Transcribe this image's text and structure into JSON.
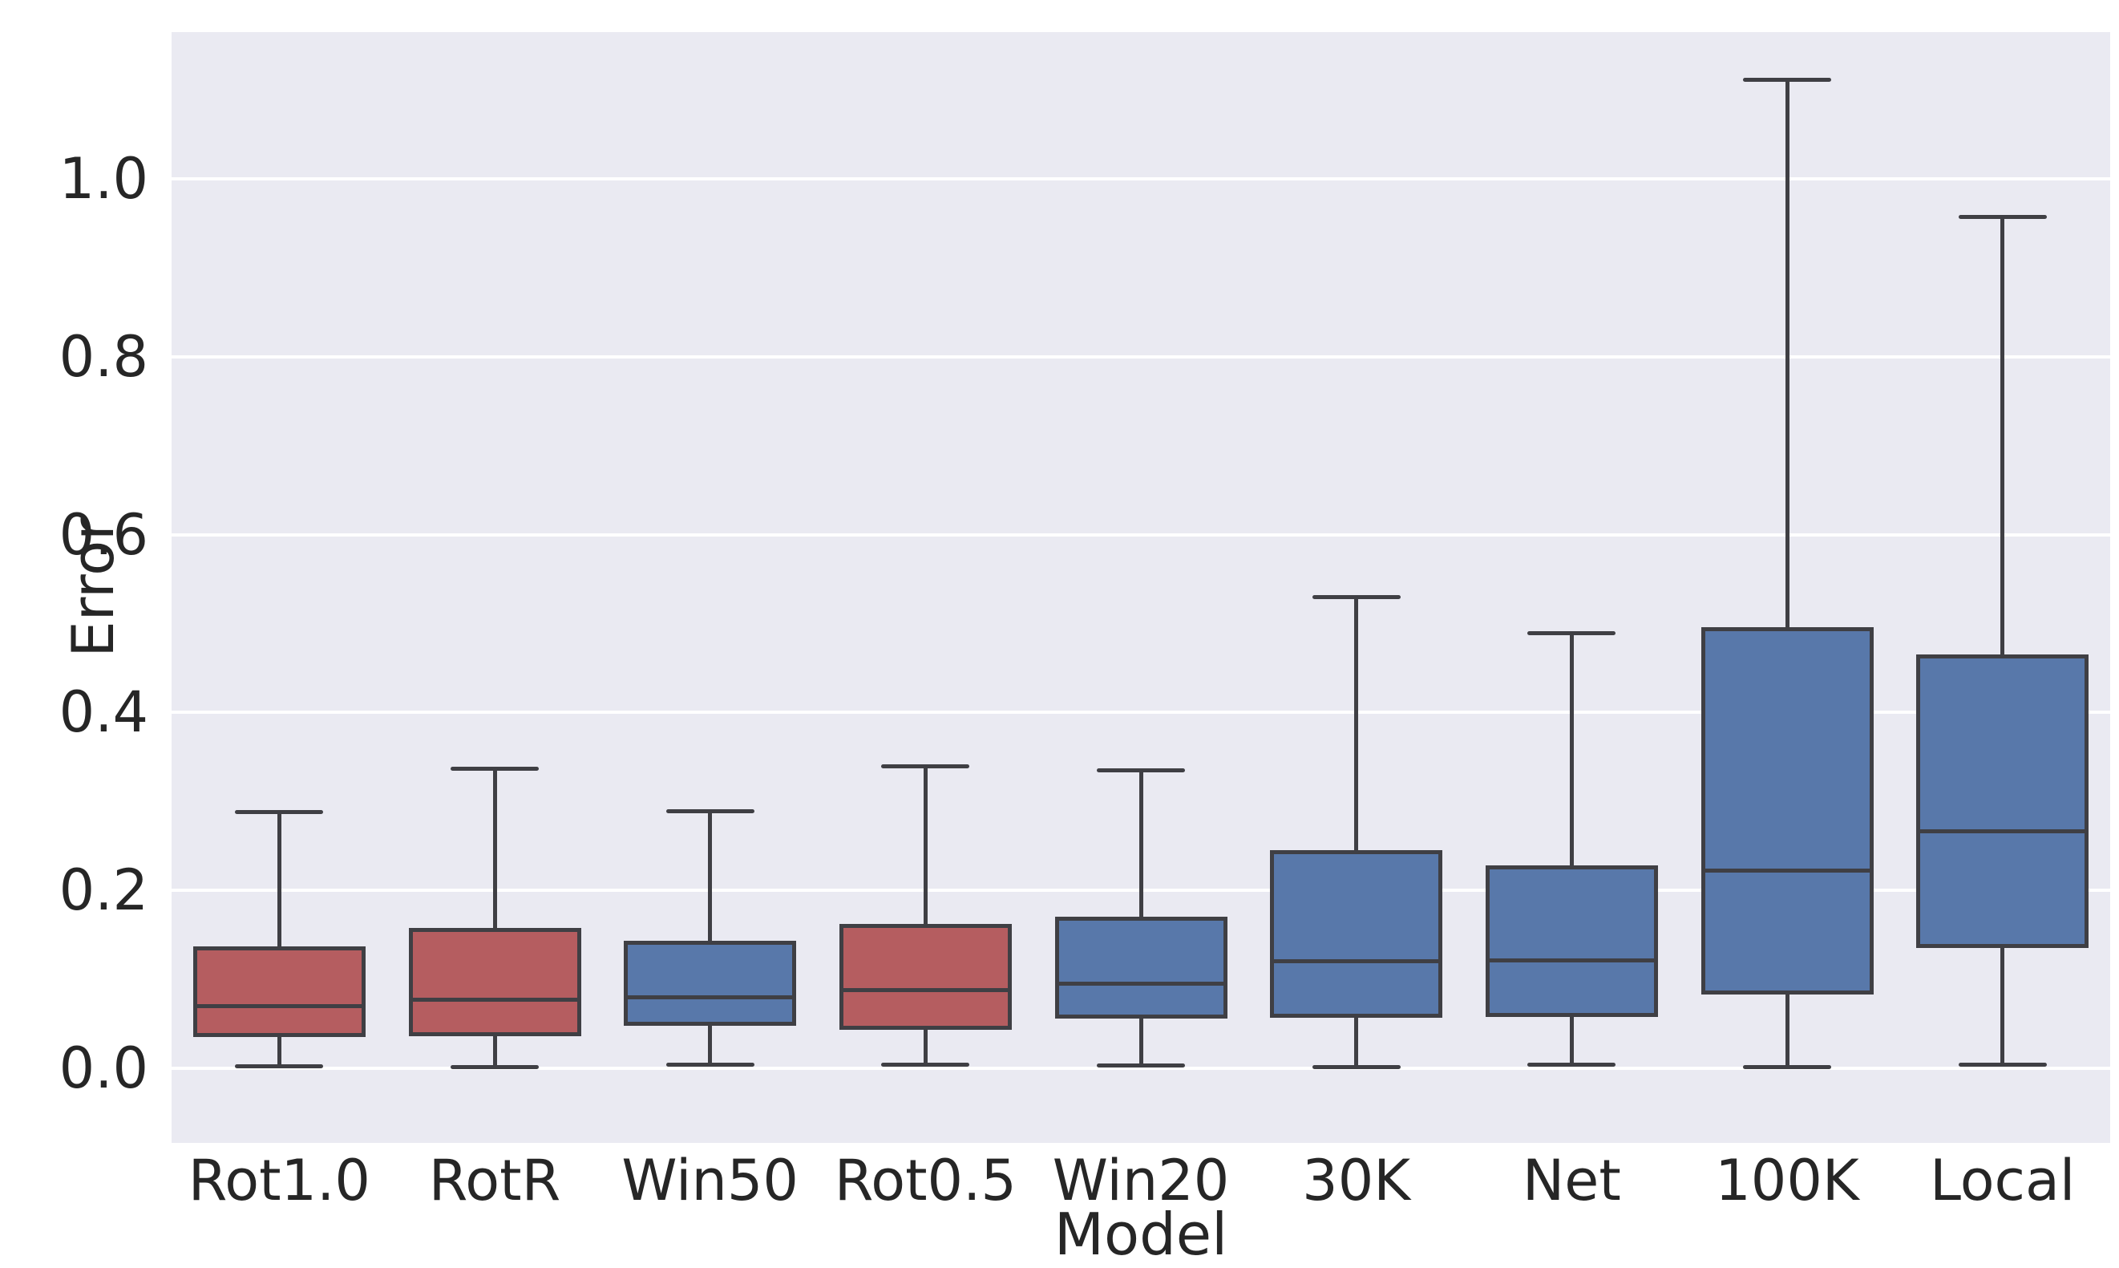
{
  "chart_data": {
    "type": "box",
    "title": "",
    "xlabel": "Model",
    "ylabel": "Error",
    "ylim": [
      -0.084,
      1.165
    ],
    "yticks": [
      {
        "value": 0.0,
        "label": "0.0"
      },
      {
        "value": 0.2,
        "label": "0.2"
      },
      {
        "value": 0.4,
        "label": "0.4"
      },
      {
        "value": 0.6,
        "label": "0.6"
      },
      {
        "value": 0.8,
        "label": "0.8"
      },
      {
        "value": 1.0,
        "label": "1.0"
      }
    ],
    "grid": "horizontal",
    "legend": "none",
    "categories": [
      "Rot1.0",
      "RotR",
      "Win50",
      "Rot0.5",
      "Win20",
      "30K",
      "Net",
      "100K",
      "Local"
    ],
    "boxes": [
      {
        "label": "Rot1.0",
        "color_key": "red",
        "whisker_low": 0.002,
        "q1": 0.035,
        "median": 0.07,
        "q3": 0.137,
        "whisker_high": 0.288
      },
      {
        "label": "RotR",
        "color_key": "red",
        "whisker_low": 0.001,
        "q1": 0.036,
        "median": 0.077,
        "q3": 0.158,
        "whisker_high": 0.337
      },
      {
        "label": "Win50",
        "color_key": "blue",
        "whisker_low": 0.004,
        "q1": 0.048,
        "median": 0.08,
        "q3": 0.143,
        "whisker_high": 0.289
      },
      {
        "label": "Rot0.5",
        "color_key": "red",
        "whisker_low": 0.004,
        "q1": 0.043,
        "median": 0.088,
        "q3": 0.162,
        "whisker_high": 0.339
      },
      {
        "label": "Win20",
        "color_key": "blue",
        "whisker_low": 0.003,
        "q1": 0.056,
        "median": 0.095,
        "q3": 0.17,
        "whisker_high": 0.335
      },
      {
        "label": "30K",
        "color_key": "blue",
        "whisker_low": 0.001,
        "q1": 0.057,
        "median": 0.12,
        "q3": 0.245,
        "whisker_high": 0.53
      },
      {
        "label": "Net",
        "color_key": "blue",
        "whisker_low": 0.004,
        "q1": 0.058,
        "median": 0.121,
        "q3": 0.228,
        "whisker_high": 0.489
      },
      {
        "label": "100K",
        "color_key": "blue",
        "whisker_low": 0.001,
        "q1": 0.083,
        "median": 0.222,
        "q3": 0.496,
        "whisker_high": 1.111
      },
      {
        "label": "Local",
        "color_key": "blue",
        "whisker_low": 0.004,
        "q1": 0.135,
        "median": 0.266,
        "q3": 0.465,
        "whisker_high": 0.957
      }
    ],
    "palette": {
      "red": "#b55d60",
      "blue": "#5878aa"
    },
    "colors": {
      "panel_bg": "#eaeaf2",
      "grid": "#ffffff",
      "line": "#3f3f44",
      "text": "#262626",
      "figure_bg": "#ffffff"
    }
  }
}
